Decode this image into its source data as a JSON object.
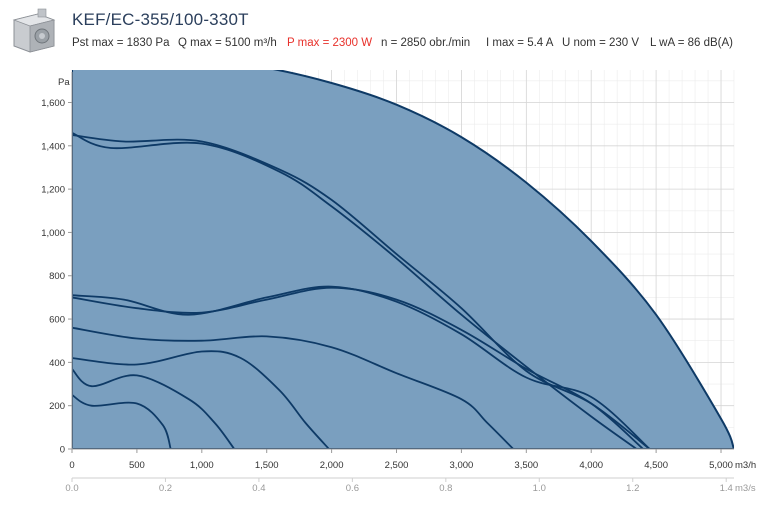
{
  "header": {
    "model": "KEF/EC-355/100-330T",
    "specs": {
      "pst_max": "Pst max = 1830 Pa",
      "q_max": "Q max = 5100 m³/h",
      "p_max": "P max = 2300 W",
      "n": "n = 2850 obr./min",
      "i_max": "I max = 5.4 A",
      "u_nom": "U nom = 230 V",
      "lwa": "L wA = 86 dB(A)"
    }
  },
  "colors": {
    "area_fill": "#7a9fbf",
    "curve": "#0e3a66",
    "grid": "#d6d6d6",
    "highlight": "#e8312b"
  },
  "chart_data": {
    "type": "line",
    "title": "",
    "ylabel": "Pa",
    "xlabel": "m3/h",
    "x2label": "m3/s",
    "xlim": [
      0,
      5100
    ],
    "ylim": [
      0,
      1750
    ],
    "x_ticks": [
      0,
      500,
      1000,
      1500,
      2000,
      2500,
      3000,
      3500,
      4000,
      4500,
      5000
    ],
    "x_tick_labels": [
      "0",
      "500",
      "1,000",
      "1,500",
      "2,000",
      "2,500",
      "3,000",
      "3,500",
      "4,000",
      "4,500",
      "5,000"
    ],
    "x2_ticks": [
      0,
      0.2,
      0.4,
      0.6,
      0.8,
      1.0,
      1.2,
      1.4
    ],
    "x2_tick_labels": [
      "0.0",
      "0.2",
      "0.4",
      "0.6",
      "0.8",
      "1.0",
      "1.2",
      "1.4"
    ],
    "y_ticks": [
      0,
      200,
      400,
      600,
      800,
      1000,
      1200,
      1400,
      1600
    ],
    "y_tick_labels": [
      "0",
      "200",
      "400",
      "600",
      "800",
      "1,000",
      "1,200",
      "1,400",
      "1,600"
    ],
    "grid": true,
    "envelope": {
      "x": [
        0,
        500,
        1000,
        1500,
        2000,
        2500,
        3000,
        3500,
        4000,
        4500,
        5000,
        5100
      ],
      "y": [
        1830,
        1820,
        1800,
        1760,
        1690,
        1590,
        1440,
        1230,
        960,
        620,
        140,
        0
      ]
    },
    "series": [
      {
        "x": [
          0,
          300,
          1000,
          1600,
          2000,
          2500,
          3000,
          3500,
          4000,
          4350
        ],
        "y": [
          1460,
          1390,
          1410,
          1280,
          1120,
          880,
          620,
          380,
          150,
          0
        ]
      },
      {
        "x": [
          0,
          400,
          1000,
          1600,
          2000,
          2500,
          3000,
          3500,
          4000,
          4450
        ],
        "y": [
          1450,
          1420,
          1420,
          1290,
          1150,
          900,
          650,
          360,
          210,
          0
        ]
      },
      {
        "x": [
          0,
          400,
          900,
          1500,
          2000,
          2500,
          3000,
          3500,
          4000,
          4450
        ],
        "y": [
          710,
          690,
          620,
          700,
          750,
          680,
          530,
          330,
          240,
          0
        ]
      },
      {
        "x": [
          0,
          500,
          1000,
          1500,
          2000,
          2500,
          3000,
          3500,
          4000,
          4400
        ],
        "y": [
          700,
          650,
          630,
          690,
          745,
          690,
          550,
          370,
          210,
          0
        ]
      },
      {
        "x": [
          0,
          500,
          1000,
          1500,
          2000,
          2500,
          3000,
          3200,
          3400
        ],
        "y": [
          560,
          510,
          500,
          520,
          470,
          350,
          230,
          120,
          0
        ]
      },
      {
        "x": [
          0,
          500,
          1000,
          1300,
          1600,
          1800,
          1980
        ],
        "y": [
          420,
          390,
          450,
          420,
          270,
          120,
          0
        ]
      },
      {
        "x": [
          0,
          150,
          500,
          900,
          1100,
          1250
        ],
        "y": [
          370,
          290,
          340,
          230,
          120,
          0
        ]
      },
      {
        "x": [
          0,
          150,
          500,
          700,
          760
        ],
        "y": [
          250,
          200,
          210,
          110,
          0
        ]
      }
    ]
  }
}
